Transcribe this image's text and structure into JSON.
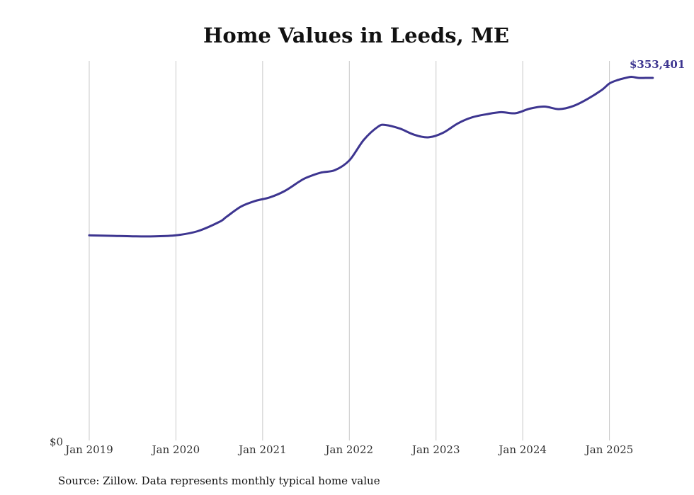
{
  "chart_data": {
    "type": "line",
    "title": "Home Values in Leeds, ME",
    "xlabel": "",
    "ylabel": "",
    "x_tick_labels": [
      "Jan 2019",
      "Jan 2020",
      "Jan 2021",
      "Jan 2022",
      "Jan 2023",
      "Jan 2024",
      "Jan 2025"
    ],
    "y_tick_labels": [
      "$0"
    ],
    "ylim": [
      0,
      370000
    ],
    "xlim": [
      "2019-01",
      "2025-08"
    ],
    "grid": "vertical",
    "line_color": "#3d3590",
    "end_label": "$353,401",
    "source_note": "Source: Zillow. Data represents monthly typical home value",
    "series": [
      {
        "x": [
          "2019-01",
          "2019-04",
          "2019-07",
          "2019-10",
          "2020-01",
          "2020-04",
          "2020-07",
          "2020-08",
          "2020-10",
          "2020-12",
          "2021-02",
          "2021-04",
          "2021-06",
          "2021-07",
          "2021-09",
          "2021-11",
          "2022-01",
          "2022-03",
          "2022-05",
          "2022-06",
          "2022-08",
          "2022-10",
          "2022-12",
          "2023-02",
          "2023-04",
          "2023-06",
          "2023-08",
          "2023-10",
          "2023-12",
          "2024-02",
          "2024-04",
          "2024-06",
          "2024-08",
          "2024-10",
          "2024-12",
          "2025-01",
          "2025-02",
          "2025-03",
          "2025-04",
          "2025-05",
          "2025-06",
          "2025-07"
        ],
        "values": [
          200000,
          199500,
          199000,
          199000,
          200000,
          204000,
          213000,
          218000,
          228000,
          233500,
          237000,
          243000,
          252000,
          256000,
          261000,
          263500,
          273000,
          293000,
          306000,
          307500,
          304000,
          298000,
          295500,
          300000,
          309000,
          315000,
          318000,
          320000,
          319000,
          323500,
          325500,
          323000,
          326000,
          333000,
          342000,
          348000,
          351000,
          353000,
          354500,
          353401,
          353401,
          353401
        ]
      }
    ]
  }
}
